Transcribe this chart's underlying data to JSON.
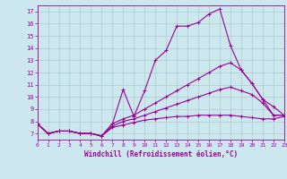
{
  "xlabel": "Windchill (Refroidissement éolien,°C)",
  "background_color": "#cce8ee",
  "line_color": "#990099",
  "grid_color": "#aacccc",
  "x": [
    0,
    1,
    2,
    3,
    4,
    5,
    6,
    7,
    8,
    9,
    10,
    11,
    12,
    13,
    14,
    15,
    16,
    17,
    18,
    19,
    20,
    21,
    22,
    23
  ],
  "lines": [
    [
      7.8,
      7.0,
      7.2,
      7.2,
      7.0,
      7.0,
      6.8,
      7.8,
      10.6,
      8.4,
      10.5,
      13.0,
      13.8,
      15.8,
      15.8,
      16.1,
      16.8,
      17.2,
      14.2,
      12.2,
      11.1,
      9.8,
      9.2,
      8.5
    ],
    [
      7.8,
      7.0,
      7.2,
      7.2,
      7.0,
      7.0,
      6.8,
      7.8,
      8.2,
      8.5,
      9.0,
      9.5,
      10.0,
      10.5,
      11.0,
      11.5,
      12.0,
      12.5,
      12.8,
      12.2,
      11.1,
      9.8,
      8.5,
      8.5
    ],
    [
      7.8,
      7.0,
      7.2,
      7.2,
      7.0,
      7.0,
      6.8,
      7.6,
      8.0,
      8.2,
      8.5,
      8.8,
      9.1,
      9.4,
      9.7,
      10.0,
      10.3,
      10.6,
      10.8,
      10.5,
      10.2,
      9.5,
      8.5,
      8.5
    ],
    [
      7.8,
      7.0,
      7.2,
      7.2,
      7.0,
      7.0,
      6.8,
      7.5,
      7.7,
      7.9,
      8.1,
      8.2,
      8.3,
      8.4,
      8.4,
      8.5,
      8.5,
      8.5,
      8.5,
      8.4,
      8.3,
      8.2,
      8.2,
      8.4
    ]
  ],
  "xlim": [
    0,
    23
  ],
  "ylim": [
    6.5,
    17.5
  ],
  "yticks": [
    7,
    8,
    9,
    10,
    11,
    12,
    13,
    14,
    15,
    16,
    17
  ],
  "xticks": [
    0,
    1,
    2,
    3,
    4,
    5,
    6,
    7,
    8,
    9,
    10,
    11,
    12,
    13,
    14,
    15,
    16,
    17,
    18,
    19,
    20,
    21,
    22,
    23
  ],
  "markersize": 3,
  "linewidth": 0.8
}
